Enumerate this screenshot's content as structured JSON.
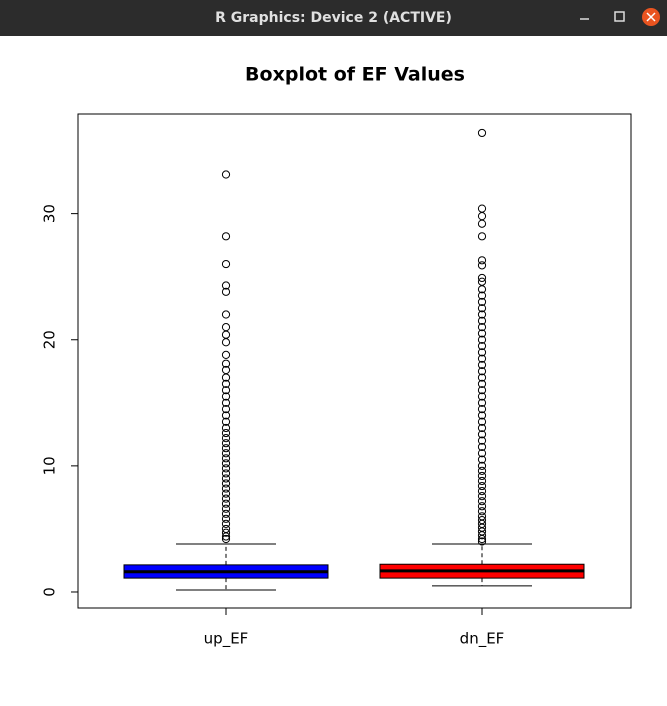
{
  "window": {
    "title": "R Graphics: Device 2 (ACTIVE)"
  },
  "chart_data": {
    "type": "boxplot",
    "title": "Boxplot of EF Values",
    "categories": [
      "up_EF",
      "dn_EF"
    ],
    "boxes": [
      {
        "color": "#0000ff",
        "whisker_low": 0.16,
        "q1": 1.1,
        "median": 1.6,
        "q3": 2.15,
        "whisker_high": 3.8,
        "outliers": [
          33.1,
          28.2,
          26.0,
          24.3,
          23.8,
          22.0,
          21.0,
          20.4,
          19.8,
          18.8,
          18.1,
          17.6,
          17.0,
          16.5,
          16.0,
          15.5,
          15.0,
          14.5,
          14.0,
          13.5,
          13.0,
          12.6,
          12.2,
          11.8,
          11.4,
          11.0,
          10.6,
          10.2,
          9.8,
          9.4,
          9.0,
          8.6,
          8.2,
          7.8,
          7.4,
          7.0,
          6.6,
          6.2,
          5.8,
          5.4,
          5.0,
          4.7,
          4.4,
          4.2
        ]
      },
      {
        "color": "#ff0000",
        "whisker_low": 0.48,
        "q1": 1.1,
        "median": 1.67,
        "q3": 2.2,
        "whisker_high": 3.8,
        "outliers": [
          36.4,
          30.4,
          29.8,
          29.2,
          28.2,
          26.3,
          25.9,
          24.9,
          24.6,
          24.0,
          23.5,
          23.0,
          22.5,
          22.0,
          21.5,
          21.0,
          20.5,
          20.0,
          19.5,
          19.0,
          18.5,
          18.0,
          17.5,
          17.0,
          16.5,
          16.0,
          15.5,
          15.0,
          14.5,
          14.0,
          13.5,
          13.0,
          12.5,
          12.0,
          11.5,
          11.0,
          10.5,
          10.0,
          9.6,
          9.2,
          8.8,
          8.4,
          8.0,
          7.6,
          7.2,
          6.8,
          6.4,
          6.0,
          5.7,
          5.4,
          5.1,
          4.8,
          4.5,
          4.2,
          4.0
        ]
      }
    ],
    "ylim": [
      -1.27,
      37.9
    ],
    "yticks": [
      0,
      10,
      20,
      30
    ]
  }
}
